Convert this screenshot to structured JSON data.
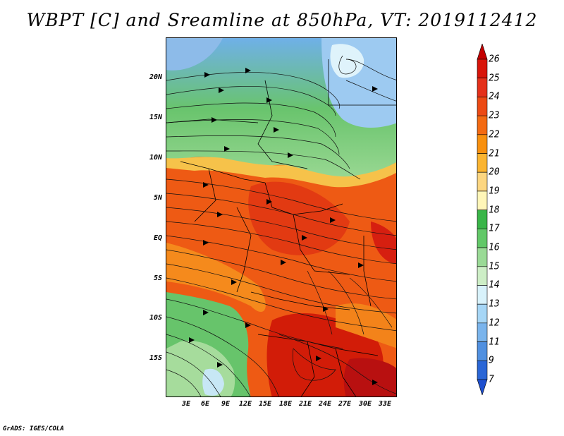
{
  "title": "WBPT [C] and Sreamline at 850hPa, VT: 2019112412",
  "credit": "GrADS: IGES/COLA",
  "latitude_labels": [
    "20N",
    "15N",
    "10N",
    "5N",
    "EQ",
    "5S",
    "10S",
    "15S"
  ],
  "longitude_labels": [
    "3E",
    "6E",
    "9E",
    "12E",
    "15E",
    "18E",
    "21E",
    "24E",
    "27E",
    "30E",
    "33E"
  ],
  "colorbar": {
    "labels": [
      "26",
      "25",
      "24",
      "23",
      "22",
      "21",
      "20",
      "19",
      "18",
      "17",
      "16",
      "15",
      "14",
      "13",
      "12",
      "11",
      "9",
      "7"
    ],
    "colors": [
      "#c40000",
      "#d8150a",
      "#e4301a",
      "#ec4a14",
      "#f36a12",
      "#f8900e",
      "#fbb430",
      "#fdd680",
      "#fff6b8",
      "#39b548",
      "#62c868",
      "#9ada96",
      "#cdeec6",
      "#d8f2fb",
      "#a6d6f6",
      "#7ab4ec",
      "#5090e0",
      "#2a66d6",
      "#1e4fcf"
    ]
  }
}
